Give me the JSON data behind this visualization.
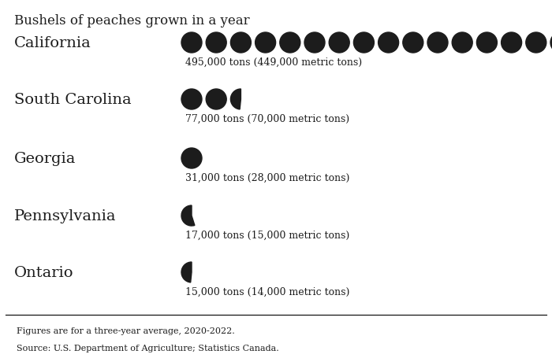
{
  "title": "Bushels of peaches grown in a year",
  "background_color": "#f4a9a9",
  "outer_background": "#ffffff",
  "circle_color": "#1c1c1c",
  "text_color": "#1c1c1c",
  "font_family": "serif",
  "states": [
    "California",
    "South Carolina",
    "Georgia",
    "Pennsylvania",
    "Ontario"
  ],
  "values": [
    495000,
    77000,
    31000,
    17000,
    15000
  ],
  "labels": [
    "495,000 tons (449,000 metric tons)",
    "77,000 tons (70,000 metric tons)",
    "31,000 tons (28,000 metric tons)",
    "17,000 tons (15,000 metric tons)",
    "15,000 tons (14,000 metric tons)"
  ],
  "unit": 31000,
  "footer_line1": "Figures are for a three-year average, 2020-2022.",
  "footer_line2": "Source: U.S. Department of Agriculture; Statistics Canada.",
  "state_fontsize": 14,
  "label_fontsize": 9,
  "title_fontsize": 12
}
